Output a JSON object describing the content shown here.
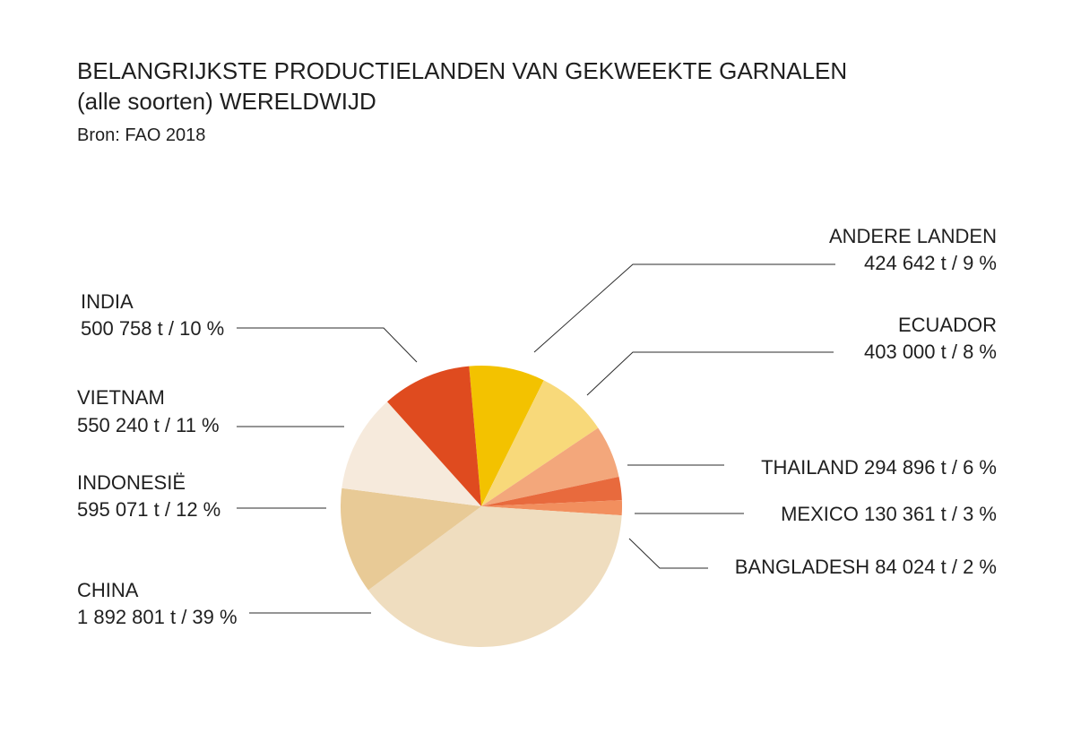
{
  "title_line1": "BELANGRIJKSTE PRODUCTIELANDEN VAN GEKWEEKTE GARNALEN",
  "title_line2": "(alle soorten) WERELDWIJD",
  "source": "Bron: FAO 2018",
  "chart_data": {
    "type": "pie",
    "start_angle_deg": -5,
    "direction": "clockwise",
    "slices": [
      {
        "name": "ANDERE LANDEN",
        "value": 424642,
        "label": "424 642 t / 9 %",
        "color": "#F3C200"
      },
      {
        "name": "ECUADOR",
        "value": 403000,
        "label": "403 000 t / 8 %",
        "color": "#F8D97A"
      },
      {
        "name": "THAILAND",
        "value": 294896,
        "label": "294 896 t / 6 %",
        "color": "#F3A77B"
      },
      {
        "name": "MEXICO",
        "value": 130361,
        "label": "130 361 t / 3 %",
        "color": "#E86A3D"
      },
      {
        "name": "BANGLADESH",
        "value": 84024,
        "label": "84 024 t / 2 %",
        "color": "#F28F5E"
      },
      {
        "name": "CHINA",
        "value": 1892801,
        "label": "1 892 801 t / 39 %",
        "color": "#EFDDBF"
      },
      {
        "name": "INDONESIË",
        "value": 595071,
        "label": "595 071 t / 12 %",
        "color": "#E8CA96"
      },
      {
        "name": "VIETNAM",
        "value": 550240,
        "label": "550 240 t / 11 %",
        "color": "#F6EADC"
      },
      {
        "name": "INDIA",
        "value": 500758,
        "label": "500 758 t / 10 %",
        "color": "#DF4B1F"
      }
    ]
  }
}
